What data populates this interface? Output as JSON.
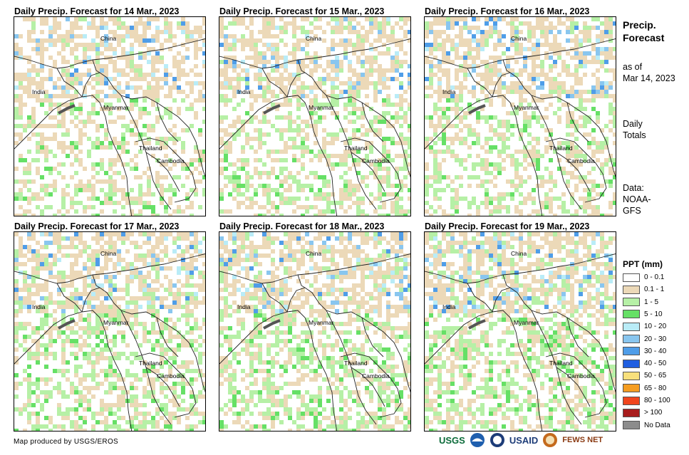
{
  "panels": [
    {
      "title": "Daily Precip. Forecast for 14 Mar., 2023",
      "intensity": 0.3
    },
    {
      "title": "Daily Precip. Forecast for 15 Mar., 2023",
      "intensity": 0.45
    },
    {
      "title": "Daily Precip. Forecast for 16 Mar., 2023",
      "intensity": 0.4
    },
    {
      "title": "Daily Precip. Forecast for 17 Mar., 2023",
      "intensity": 0.5
    },
    {
      "title": "Daily Precip. Forecast for 18 Mar., 2023",
      "intensity": 0.55
    },
    {
      "title": "Daily Precip. Forecast for 19 Mar., 2023",
      "intensity": 0.6
    }
  ],
  "map_labels": {
    "china": "China",
    "india": "India",
    "myanmar": "Myanmar",
    "thailand": "Thailand",
    "cambodia": "Cambodia"
  },
  "sidebar": {
    "title_line1": "Precip.",
    "title_line2": "Forecast",
    "asof_line1": "as of",
    "asof_line2": "Mar 14, 2023",
    "daily_line1": "Daily",
    "daily_line2": "Totals",
    "data_line1": "Data:",
    "data_line2": "NOAA-",
    "data_line3": "GFS"
  },
  "legend": {
    "title": "PPT (mm)",
    "items": [
      {
        "label": "0 - 0.1",
        "color": "#ffffff"
      },
      {
        "label": "0.1 - 1",
        "color": "#ecd9b8"
      },
      {
        "label": "1 - 5",
        "color": "#b6f0a6"
      },
      {
        "label": "5 - 10",
        "color": "#66e066"
      },
      {
        "label": "10 - 20",
        "color": "#b9ecf7"
      },
      {
        "label": "20 - 30",
        "color": "#89c6ef"
      },
      {
        "label": "30 - 40",
        "color": "#4f9de8"
      },
      {
        "label": "40 - 50",
        "color": "#1f5ee0"
      },
      {
        "label": "50 - 65",
        "color": "#f8e07c"
      },
      {
        "label": "65 - 80",
        "color": "#f59d21"
      },
      {
        "label": "80 - 100",
        "color": "#f0461e"
      },
      {
        "label": "> 100",
        "color": "#a81d1d"
      },
      {
        "label": "No Data",
        "color": "#8c8c8c"
      }
    ]
  },
  "footer": {
    "credit": "Map produced by USGS/EROS",
    "logo_usgs": "USGS",
    "logo_usaid": "USAID",
    "logo_fews": "FEWS NET"
  }
}
